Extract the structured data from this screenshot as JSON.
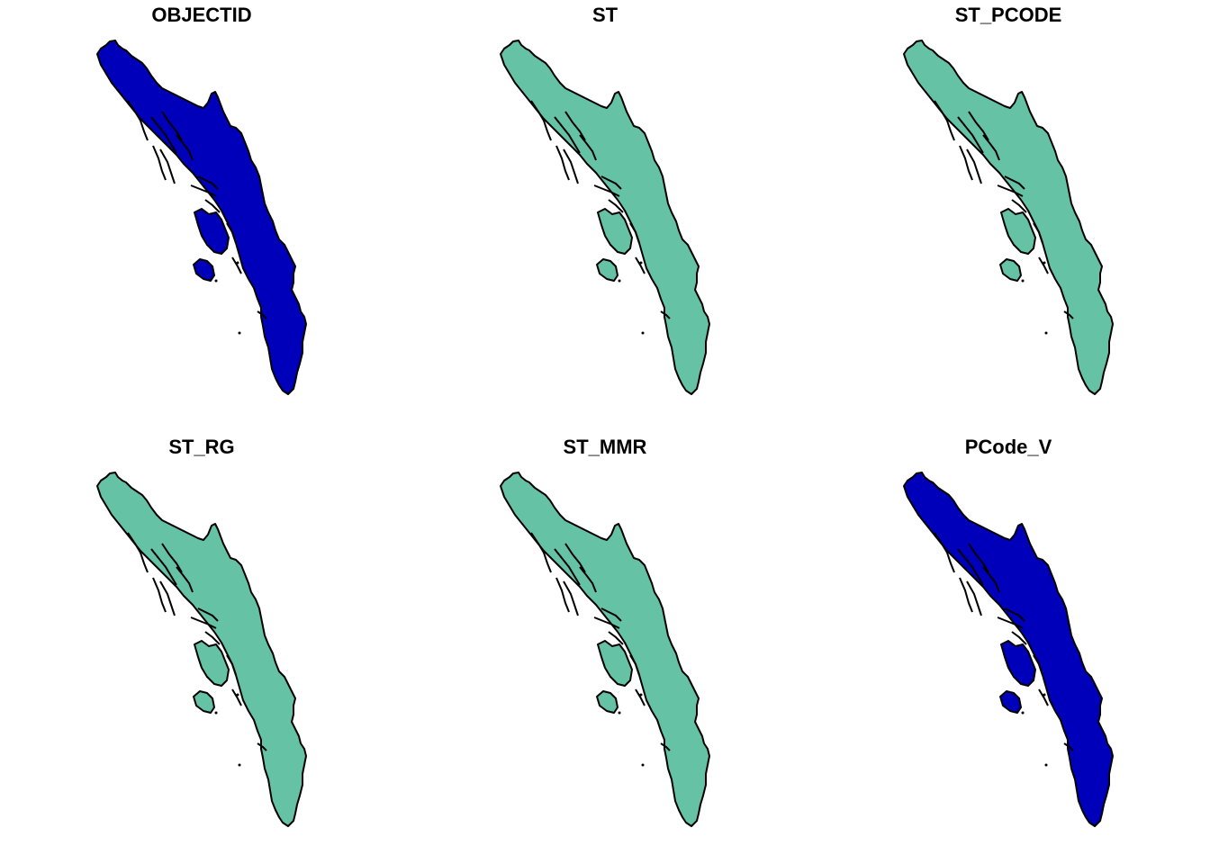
{
  "panels": [
    {
      "title": "OBJECTID",
      "fill": "#0000BB"
    },
    {
      "title": "ST",
      "fill": "#66C2A5"
    },
    {
      "title": "ST_PCODE",
      "fill": "#66C2A5"
    },
    {
      "title": "ST_RG",
      "fill": "#66C2A5"
    },
    {
      "title": "ST_MMR",
      "fill": "#66C2A5"
    },
    {
      "title": "PCode_V",
      "fill": "#0000BB"
    }
  ],
  "colors": {
    "dark_blue": "#0000BB",
    "teal": "#66C2A5",
    "outline": "#000000"
  }
}
